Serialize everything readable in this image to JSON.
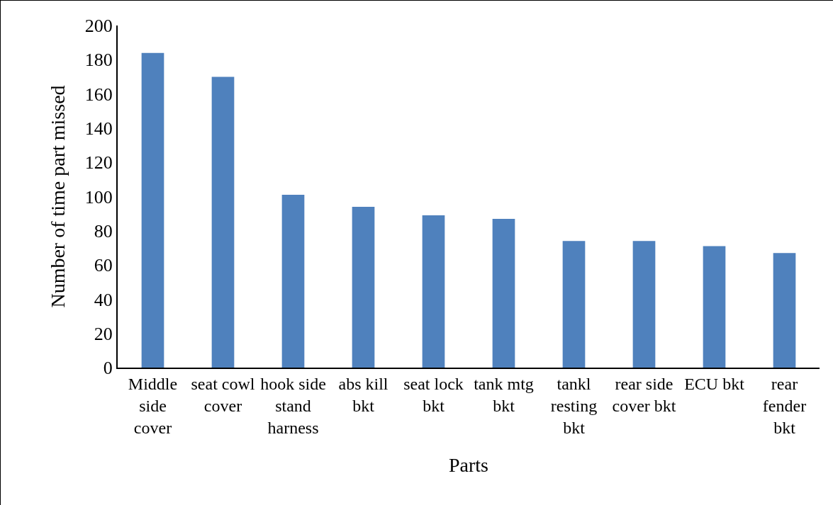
{
  "chart_data": {
    "type": "bar",
    "xlabel": "Parts",
    "ylabel": "Number of time part missed",
    "categories": [
      "Middle side cover",
      "seat cowl cover",
      "hook side stand harness",
      "abs kill bkt",
      "seat lock bkt",
      "tank mtg bkt",
      "tankl resting bkt",
      "rear side cover bkt",
      "ECU bkt",
      "rear fender bkt"
    ],
    "values": [
      184,
      170,
      101,
      94,
      89,
      87,
      74,
      74,
      71,
      67
    ],
    "color": "#4f81bd",
    "ylim": [
      0,
      200
    ],
    "yticks": [
      0,
      20,
      40,
      60,
      80,
      100,
      120,
      140,
      160,
      180,
      200
    ],
    "grid": false
  }
}
